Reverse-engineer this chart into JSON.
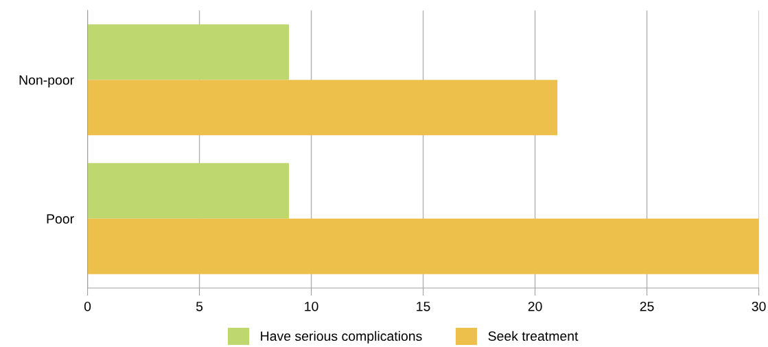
{
  "chart_data": {
    "type": "bar",
    "orientation": "horizontal",
    "categories": [
      "Non-poor",
      "Poor"
    ],
    "series": [
      {
        "name": "Have serious complications",
        "color": "#bed76f",
        "values": [
          9,
          9
        ]
      },
      {
        "name": "Seek treatment",
        "color": "#ecc04b",
        "values": [
          21,
          30
        ]
      }
    ],
    "xlim": [
      0,
      30
    ],
    "xticks": [
      0,
      5,
      10,
      15,
      20,
      25,
      30
    ],
    "grid": "x",
    "legend": "bottom"
  }
}
